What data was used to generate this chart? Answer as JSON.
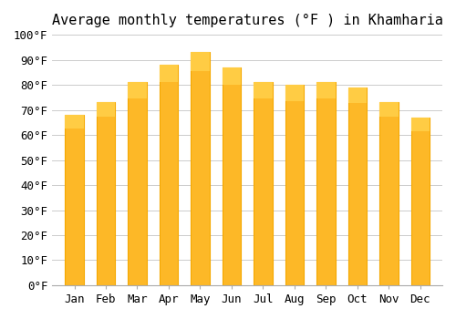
{
  "title": "Average monthly temperatures (°F ) in Khamharia",
  "months": [
    "Jan",
    "Feb",
    "Mar",
    "Apr",
    "May",
    "Jun",
    "Jul",
    "Aug",
    "Sep",
    "Oct",
    "Nov",
    "Dec"
  ],
  "values": [
    68,
    73,
    81,
    88,
    93,
    87,
    81,
    80,
    81,
    79,
    73,
    67
  ],
  "bar_color_face": "#FDB827",
  "bar_color_edge": "#F5A800",
  "background_color": "#FFFFFF",
  "grid_color": "#CCCCCC",
  "ylim": [
    0,
    100
  ],
  "yticks": [
    0,
    10,
    20,
    30,
    40,
    50,
    60,
    70,
    80,
    90,
    100
  ],
  "title_fontsize": 11,
  "tick_fontsize": 9,
  "font_family": "monospace"
}
